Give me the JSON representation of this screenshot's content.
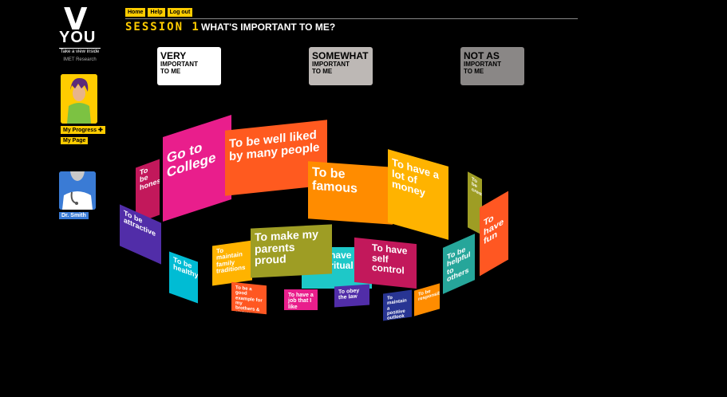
{
  "logo": {
    "mark": "V",
    "name": "YOU",
    "tagline": "Take a view inside",
    "subtitle": "IMET Research"
  },
  "sidebar": {
    "progress_label": "My Progress",
    "progress_plus": "✚",
    "mypage_label": "My Page",
    "doctor_label": "Dr. Smith"
  },
  "nav": {
    "home": "Home",
    "help": "Help",
    "logout": "Log out"
  },
  "header": {
    "session": "SESSION 1",
    "question": "WHAT'S IMPORTANT TO ME?"
  },
  "categories": [
    {
      "big": "VERY",
      "small1": "IMPORTANT",
      "small2": "TO ME",
      "color": "#ffffff"
    },
    {
      "big": "SOMEWHAT",
      "small1": "IMPORTANT",
      "small2": "TO ME",
      "color": "#bdb8b5"
    },
    {
      "big": "NOT AS",
      "small1": "IMPORTANT",
      "small2": "TO ME",
      "color": "#8a8786"
    }
  ],
  "cards": {
    "honest": "To be honest",
    "college": "Go to College",
    "well_liked": "To be well liked by many people",
    "famous": "To be famous",
    "money": "To have a lot of money",
    "olive_right": "To be creative",
    "fun": "To have fun",
    "attractive": "To be attractive",
    "healthy": "To be healthy",
    "traditions": "To maintain family traditions",
    "parents": "To make my parents proud",
    "spiritual": "To have spiritual",
    "self_control": "To have self control",
    "helpful": "To be helpful to others",
    "good_example": "To be a good example for my brothers & sisters",
    "job": "To have a job that I like",
    "obey": "To obey the law",
    "positive": "To maintain a positive outlook",
    "responsible": "To be responsible"
  }
}
